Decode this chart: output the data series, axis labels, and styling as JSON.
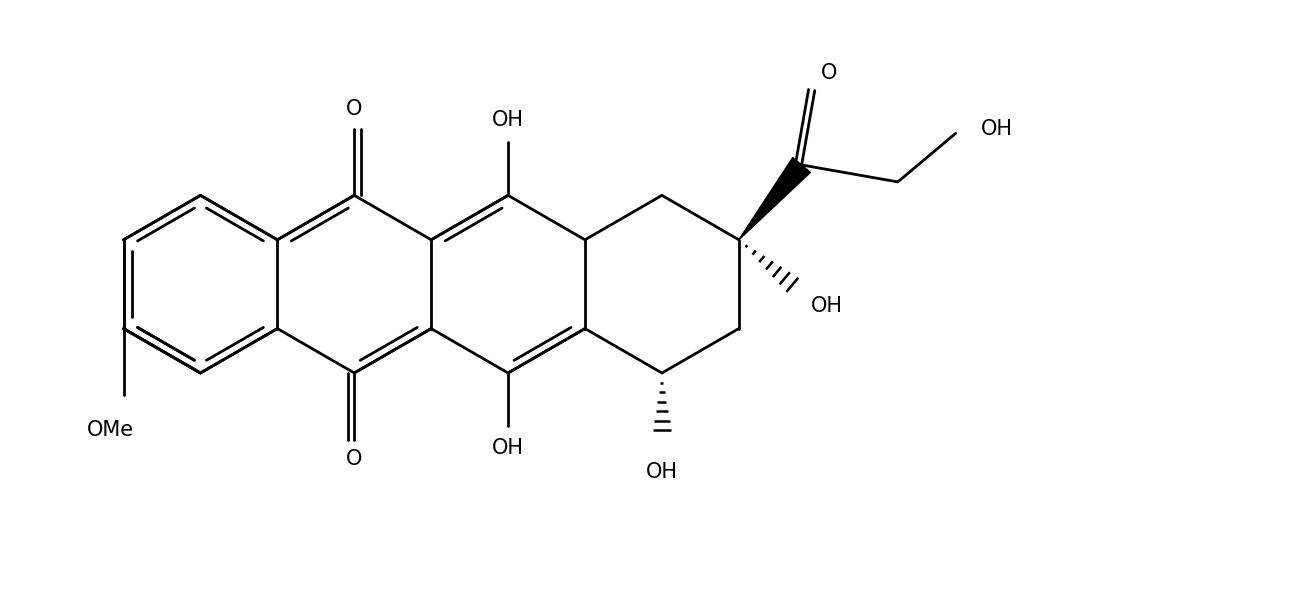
{
  "bg_color": "#ffffff",
  "line_color": "#000000",
  "lw": 2.0,
  "fs": 15,
  "fig_w": 12.89,
  "fig_h": 5.95,
  "xlim": [
    -0.5,
    13.5
  ],
  "ylim": [
    -3.2,
    3.5
  ]
}
